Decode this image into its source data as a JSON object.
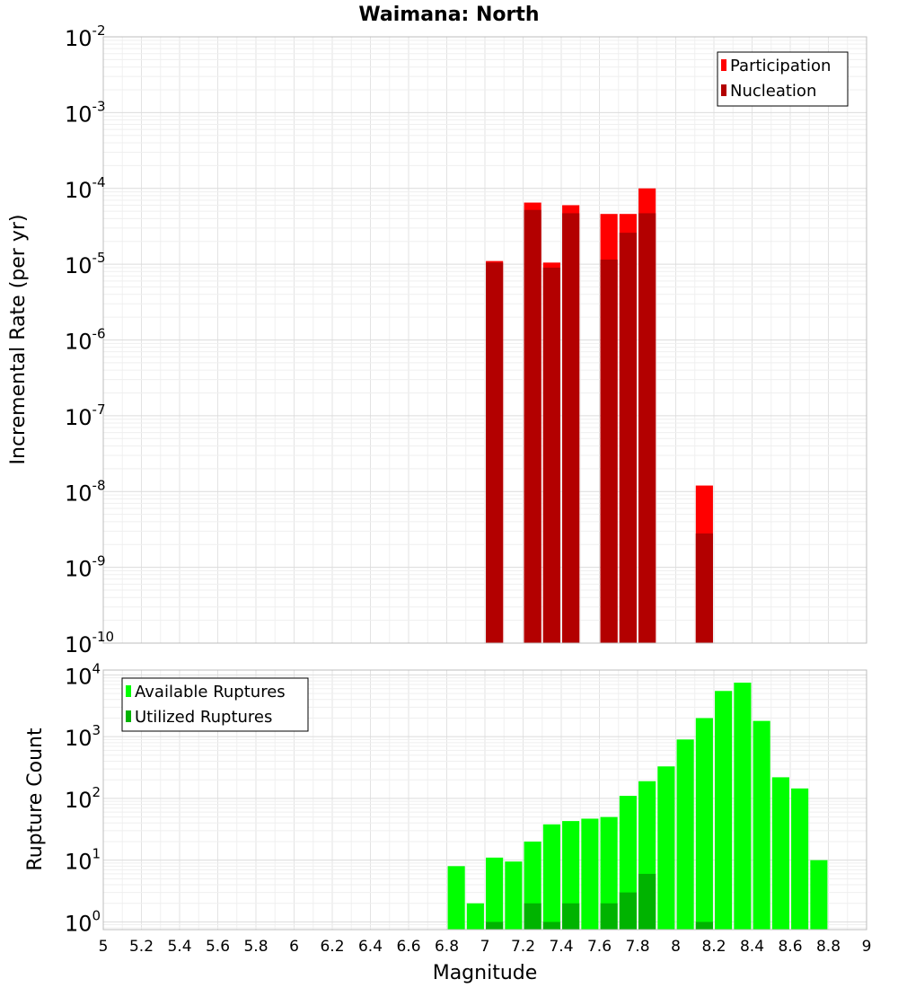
{
  "chart_data": [
    {
      "type": "bar",
      "panel": "top",
      "title": "Waimana: North",
      "xlabel": "",
      "ylabel": "Incremental Rate (per yr)",
      "xlim": [
        5,
        9
      ],
      "ylim": [
        1e-10,
        0.01
      ],
      "yscale": "log",
      "y_ticks": [
        {
          "base": "10",
          "exp": "-2"
        },
        {
          "base": "10",
          "exp": "-3"
        },
        {
          "base": "10",
          "exp": "-4"
        },
        {
          "base": "10",
          "exp": "-5"
        },
        {
          "base": "10",
          "exp": "-6"
        },
        {
          "base": "10",
          "exp": "-7"
        },
        {
          "base": "10",
          "exp": "-8"
        },
        {
          "base": "10",
          "exp": "-9"
        },
        {
          "base": "10",
          "exp": "-10"
        }
      ],
      "grid": true,
      "legend": "top-right",
      "bar_width": 0.09,
      "colors": {
        "Participation": "#ff0000",
        "Nucleation": "#b30000"
      },
      "series": [
        {
          "name": "Participation",
          "x": [
            7.05,
            7.25,
            7.35,
            7.45,
            7.65,
            7.75,
            7.85,
            8.15
          ],
          "values": [
            1.1e-05,
            6.5e-05,
            1.05e-05,
            6e-05,
            4.6e-05,
            4.6e-05,
            0.0001,
            1.2e-08
          ]
        },
        {
          "name": "Nucleation",
          "x": [
            7.05,
            7.25,
            7.35,
            7.45,
            7.65,
            7.75,
            7.85,
            8.15
          ],
          "values": [
            1.05e-05,
            5.2e-05,
            9e-06,
            4.7e-05,
            1.15e-05,
            2.6e-05,
            4.7e-05,
            2.8e-09
          ]
        }
      ]
    },
    {
      "type": "bar",
      "panel": "bottom",
      "xlabel": "Magnitude",
      "ylabel": "Rupture Count",
      "xlim": [
        5,
        9
      ],
      "ylim": [
        0.75,
        12000
      ],
      "yscale": "log",
      "x_ticks": [
        "5",
        "5.2",
        "5.4",
        "5.6",
        "5.8",
        "6",
        "6.2",
        "6.4",
        "6.6",
        "6.8",
        "7",
        "7.2",
        "7.4",
        "7.6",
        "7.8",
        "8",
        "8.2",
        "8.4",
        "8.6",
        "8.8",
        "9"
      ],
      "y_ticks": [
        {
          "base": "10",
          "exp": "4"
        },
        {
          "base": "10",
          "exp": "3"
        },
        {
          "base": "10",
          "exp": "2"
        },
        {
          "base": "10",
          "exp": "1"
        },
        {
          "base": "10",
          "exp": "0"
        }
      ],
      "grid": true,
      "legend": "top-left",
      "bar_width": 0.09,
      "colors": {
        "Available Ruptures": "#00ff00",
        "Utilized Ruptures": "#00b300"
      },
      "series": [
        {
          "name": "Available Ruptures",
          "x": [
            6.85,
            6.95,
            7.05,
            7.15,
            7.25,
            7.35,
            7.45,
            7.55,
            7.65,
            7.75,
            7.85,
            7.95,
            8.05,
            8.15,
            8.25,
            8.35,
            8.45,
            8.55,
            8.65,
            8.75
          ],
          "values": [
            8,
            2,
            11,
            9.5,
            20,
            38,
            43,
            47,
            50,
            110,
            190,
            330,
            900,
            2000,
            5500,
            7500,
            1800,
            220,
            145,
            10
          ]
        },
        {
          "name": "Utilized Ruptures",
          "x": [
            7.05,
            7.25,
            7.35,
            7.45,
            7.65,
            7.75,
            7.85,
            8.15
          ],
          "values": [
            1,
            2,
            1,
            2,
            2,
            3,
            6,
            1
          ]
        }
      ]
    }
  ]
}
